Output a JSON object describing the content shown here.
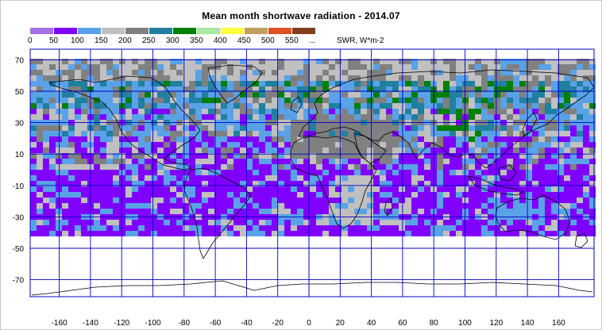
{
  "title": "Mean month shortwave radiation - 2014.07",
  "legend": {
    "labels": [
      "0",
      "50",
      "100",
      "150",
      "200",
      "250",
      "300",
      "350",
      "400",
      "450",
      "500",
      "550",
      "..."
    ],
    "colors": [
      "#a46ee6",
      "#8000ff",
      "#5aa2e8",
      "#c0c0c0",
      "#808080",
      "#2080a0",
      "#008000",
      "#a8e8a0",
      "#ffff40",
      "#c0a060",
      "#e05020",
      "#804020"
    ],
    "units": "SWR, W*m-2"
  },
  "axes": {
    "lat_ticks": [
      "70",
      "50",
      "30",
      "10",
      "-10",
      "-30",
      "-50",
      "-70"
    ],
    "lon_ticks": [
      "-160",
      "-140",
      "-120",
      "-100",
      "-80",
      "-60",
      "-40",
      "-20",
      "0",
      "20",
      "40",
      "60",
      "80",
      "100",
      "120",
      "140",
      "160"
    ],
    "grid_color": "#0000c0"
  }
}
